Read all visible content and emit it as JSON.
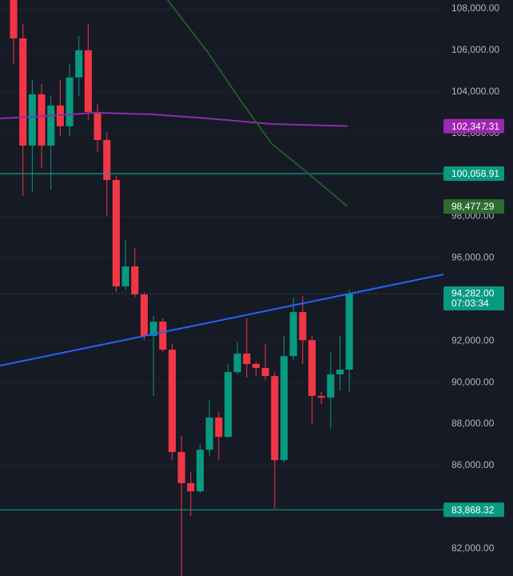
{
  "chart_data": {
    "type": "candlestick",
    "up_color": "#089981",
    "down_color": "#f23645",
    "grid": true,
    "xlim": [
      -1.46,
      46.1
    ],
    "ylim": [
      80680,
      108420
    ],
    "yticks": [
      {
        "value": 108000,
        "label": "108,000.00"
      },
      {
        "value": 106000,
        "label": "106,000.00"
      },
      {
        "value": 104000,
        "label": "104,000.00"
      },
      {
        "value": 102000,
        "label": "102,000.00"
      },
      {
        "value": 100000,
        "label": "100,000.00"
      },
      {
        "value": 98000,
        "label": "98,000.00"
      },
      {
        "value": 96000,
        "label": "96,000.00"
      },
      {
        "value": 94000,
        "label": "94,000.00"
      },
      {
        "value": 92000,
        "label": "92,000.00"
      },
      {
        "value": 90000,
        "label": "90,000.00"
      },
      {
        "value": 88000,
        "label": "88,000.00"
      },
      {
        "value": 86000,
        "label": "86,000.00"
      },
      {
        "value": 84000,
        "label": "84,000.00"
      },
      {
        "value": 82000,
        "label": "82,000.00"
      }
    ],
    "open": [
      108700,
      106570,
      101410,
      103880,
      101410,
      103340,
      102340,
      104690,
      106000,
      103030,
      101680,
      99750,
      94630,
      95590,
      94240,
      92240,
      92930,
      91580,
      86650,
      85150,
      84760,
      86760,
      88310,
      87380,
      90500,
      91390,
      90890,
      90700,
      90310,
      86260,
      91270,
      93390,
      92040,
      89350,
      89270,
      90390,
      90620
    ],
    "high": [
      109200,
      107270,
      104570,
      104380,
      103800,
      104570,
      105340,
      106690,
      107270,
      103410,
      102070,
      99950,
      96860,
      96480,
      94360,
      93200,
      93090,
      91850,
      87420,
      85690,
      87040,
      89150,
      88580,
      90890,
      91930,
      93090,
      91000,
      91850,
      90500,
      92240,
      94090,
      94160,
      92240,
      89540,
      91470,
      92240,
      94470
    ],
    "low": [
      105340,
      98980,
      99170,
      100330,
      99290,
      101870,
      101870,
      103800,
      102640,
      101100,
      98020,
      94360,
      94470,
      94090,
      92040,
      89350,
      91470,
      86260,
      80680,
      83570,
      84680,
      86460,
      86260,
      87340,
      90430,
      90230,
      90310,
      90120,
      83950,
      86150,
      91080,
      90890,
      88000,
      88960,
      87770,
      89620,
      89540
    ],
    "close": [
      106570,
      101410,
      103880,
      101410,
      103340,
      102340,
      104690,
      106000,
      103030,
      101680,
      99750,
      94630,
      95590,
      94240,
      92240,
      92930,
      91580,
      86650,
      85150,
      84760,
      86760,
      88310,
      87380,
      90500,
      91390,
      90890,
      90700,
      90310,
      86260,
      91270,
      93390,
      92040,
      89350,
      89270,
      90390,
      90620,
      94282
    ],
    "overlays": [
      {
        "color": "#8a2ea8",
        "x": [
          -1.46,
          3.68,
          8.8,
          14.8,
          20.8,
          27.7,
          35.8
        ],
        "values": [
          102720,
          102836,
          102990,
          102913,
          102720,
          102450,
          102347.31
        ],
        "last_label": "102,347.31"
      },
      {
        "color": "#1e5c25",
        "x": [
          16.5,
          20.8,
          24.3,
          27.7,
          31.1,
          35.8
        ],
        "values": [
          108424,
          105919,
          103607,
          101487,
          100254,
          98477.29
        ],
        "last_label": "98,477.29"
      },
      {
        "color": "#2962ff",
        "x": [
          -1.46,
          46.1
        ],
        "values": [
          90810,
          95205
        ]
      }
    ],
    "hlines": [
      {
        "value": 100058.91,
        "label": "100,058.91",
        "color": "#089981"
      },
      {
        "value": 83868.32,
        "label": "83,868.32",
        "color": "#089981"
      }
    ],
    "last_price": {
      "value": 94282,
      "label": "94,282.00",
      "countdown": "07:03:34",
      "color": "#089981"
    }
  }
}
